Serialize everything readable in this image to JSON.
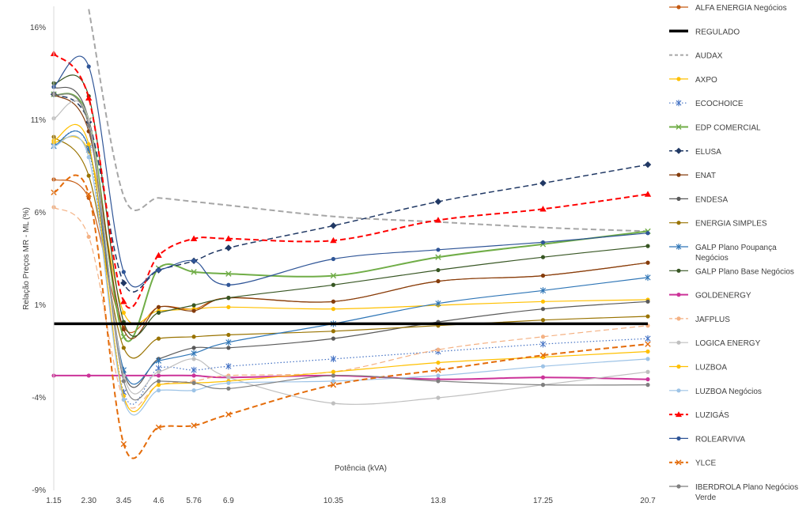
{
  "chart_data": {
    "type": "line",
    "title": "",
    "xlabel": "Potência (kVA)",
    "ylabel": "Relação Preços MR - ML (%)",
    "x": [
      1.15,
      2.3,
      3.45,
      4.6,
      5.76,
      6.9,
      10.35,
      13.8,
      17.25,
      20.7
    ],
    "x_tick_labels": [
      "1.15",
      "2.30",
      "3.45",
      "4.6",
      "5.76",
      "6.9",
      "10.35",
      "13.8",
      "17.25",
      "20.7"
    ],
    "y_ticks": [
      16,
      11,
      6,
      1,
      -4,
      -9
    ],
    "y_tick_labels": [
      "16%",
      "11%",
      "6%",
      "1%",
      "-4%",
      "-9%"
    ],
    "ylim": [
      -9,
      16.5
    ],
    "grid": false,
    "legend_position": "right",
    "series": [
      {
        "name": "ALFA ENERGIA Negócios",
        "color": "#c55a11",
        "dash": "solid",
        "marker": "circle",
        "smooth": true,
        "values": [
          7.8,
          6.8,
          -0.2,
          0.9,
          0.8,
          1.4,
          1.2,
          2.3,
          2.6,
          3.3
        ]
      },
      {
        "name": "REGULADO",
        "color": "#000000",
        "dash": "solid",
        "marker": "none",
        "width": 3.5,
        "smooth": false,
        "values": [
          0,
          0,
          0,
          0,
          0,
          0,
          0,
          0,
          0,
          0
        ]
      },
      {
        "name": "AUDAX",
        "color": "#a6a6a6",
        "dash": "dashed",
        "marker": "none",
        "width": 2,
        "smooth": true,
        "values": [
          null,
          17,
          6.9,
          6.8,
          6.6,
          6.4,
          5.8,
          5.5,
          5.2,
          5.0
        ]
      },
      {
        "name": "AXPO",
        "color": "#ffc000",
        "dash": "solid",
        "marker": "circle",
        "smooth": true,
        "values": [
          9.8,
          9.3,
          0.6,
          0.7,
          0.8,
          0.9,
          0.8,
          1.0,
          1.2,
          1.3
        ]
      },
      {
        "name": "ECOCHOICE",
        "color": "#4472c4",
        "dash": "dotted",
        "marker": "star",
        "smooth": true,
        "values": [
          9.6,
          9.4,
          -3.7,
          -2.4,
          -2.5,
          -2.3,
          -1.9,
          -1.5,
          -1.1,
          -0.8
        ]
      },
      {
        "name": "EDP COMERCIAL",
        "color": "#70ad47",
        "dash": "solid",
        "marker": "x",
        "width": 2,
        "smooth": true,
        "values": [
          12.4,
          11.0,
          -0.7,
          3.0,
          2.8,
          2.7,
          2.6,
          3.6,
          4.3,
          5.0
        ]
      },
      {
        "name": "ELUSA",
        "color": "#203864",
        "dash": "dashed",
        "marker": "diamond",
        "width": 1.5,
        "smooth": true,
        "values": [
          12.4,
          10.9,
          2.2,
          2.9,
          3.4,
          4.1,
          5.3,
          6.6,
          7.6,
          8.6
        ]
      },
      {
        "name": "ENAT",
        "color": "#843c0c",
        "dash": "solid",
        "marker": "circle",
        "smooth": true,
        "values": [
          12.4,
          10.4,
          -0.3,
          0.9,
          0.7,
          1.4,
          1.2,
          2.3,
          2.6,
          3.3
        ]
      },
      {
        "name": "ENDESA",
        "color": "#595959",
        "dash": "solid",
        "marker": "circle",
        "smooth": true,
        "values": [
          12.8,
          11.0,
          -2.6,
          -1.9,
          -1.3,
          -1.3,
          -0.8,
          0.1,
          0.8,
          1.2
        ]
      },
      {
        "name": "ENERGIA SIMPLES",
        "color": "#997300",
        "dash": "solid",
        "marker": "circle",
        "smooth": true,
        "values": [
          10.1,
          8.0,
          -1.3,
          -0.8,
          -0.7,
          -0.6,
          -0.4,
          -0.1,
          0.2,
          0.4
        ]
      },
      {
        "name": "GALP Plano Poupança Negócios",
        "color": "#2e75b6",
        "dash": "solid",
        "marker": "star",
        "smooth": true,
        "values": [
          9.6,
          9.5,
          -2.5,
          -2.0,
          -1.6,
          -1.0,
          0.0,
          1.1,
          1.8,
          2.5
        ]
      },
      {
        "name": "GALP Plano Base Negócios",
        "color": "#375623",
        "dash": "solid",
        "marker": "circle",
        "smooth": true,
        "values": [
          13.0,
          12.3,
          0.1,
          0.6,
          1.0,
          1.4,
          2.1,
          2.9,
          3.6,
          4.2
        ]
      },
      {
        "name": "GOLDENERGY",
        "color": "#cc3399",
        "dash": "solid",
        "marker": "circle",
        "width": 2,
        "smooth": true,
        "values": [
          -2.8,
          -2.8,
          -2.8,
          -2.8,
          -2.8,
          -2.9,
          -2.8,
          -3.0,
          -2.9,
          -3.0
        ]
      },
      {
        "name": "JAFPLUS",
        "color": "#f4b183",
        "dash": "dashed",
        "marker": "circle",
        "smooth": true,
        "values": [
          6.3,
          4.7,
          -4.1,
          -3.3,
          -3.1,
          -2.8,
          -2.6,
          -1.4,
          -0.7,
          -0.1
        ]
      },
      {
        "name": "LOGICA ENERGY",
        "color": "#bfbfbf",
        "dash": "solid",
        "marker": "circle",
        "smooth": true,
        "values": [
          11.1,
          11.0,
          -2.8,
          -2.6,
          -1.9,
          -2.9,
          -4.3,
          -4.0,
          -3.3,
          -2.6
        ]
      },
      {
        "name": "LUZBOA",
        "color": "#ffc000",
        "dash": "solid",
        "marker": "circle",
        "smooth": true,
        "values": [
          9.9,
          9.7,
          -3.9,
          -3.3,
          -3.2,
          -3.1,
          -2.6,
          -2.1,
          -1.8,
          -1.5
        ]
      },
      {
        "name": "LUZBOA Negócios",
        "color": "#9dc3e6",
        "dash": "solid",
        "marker": "circle",
        "smooth": true,
        "values": [
          9.6,
          9.0,
          -4.1,
          -3.6,
          -3.6,
          -3.2,
          -3.1,
          -2.8,
          -2.3,
          -1.9
        ]
      },
      {
        "name": "LUZIGÁS",
        "color": "#ff0000",
        "dash": "dashed",
        "marker": "triangle",
        "width": 2,
        "smooth": true,
        "values": [
          14.6,
          12.2,
          1.2,
          3.7,
          4.6,
          4.6,
          4.5,
          5.6,
          6.2,
          7.0
        ]
      },
      {
        "name": "ROLEARVIVA",
        "color": "#2f5597",
        "dash": "solid",
        "marker": "circle",
        "smooth": true,
        "values": [
          12.8,
          13.9,
          2.8,
          2.9,
          3.4,
          2.1,
          3.5,
          4.0,
          4.4,
          4.9
        ]
      },
      {
        "name": "YLCE",
        "color": "#e46c0a",
        "dash": "dashed",
        "marker": "x",
        "width": 2,
        "smooth": true,
        "values": [
          7.1,
          7.0,
          -6.5,
          -5.6,
          -5.5,
          -4.9,
          -3.3,
          -2.5,
          -1.7,
          -1.1
        ]
      },
      {
        "name": "IBERDROLA Plano Negócios Verde",
        "color": "#7f7f7f",
        "dash": "solid",
        "marker": "circle",
        "smooth": true,
        "values": [
          12.4,
          10.7,
          -3.1,
          -3.1,
          -3.2,
          -3.5,
          -2.8,
          -3.1,
          -3.3,
          -3.3
        ]
      }
    ]
  }
}
